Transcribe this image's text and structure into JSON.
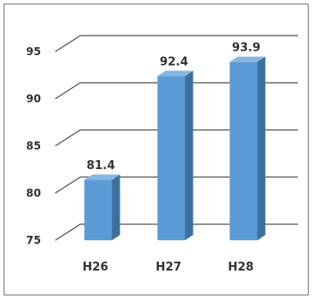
{
  "chart_data": {
    "type": "bar",
    "categories": [
      "H26",
      "H27",
      "H28"
    ],
    "category_labels": [
      "H26",
      "H27",
      "H28"
    ],
    "values": [
      81.4,
      92.4,
      93.9
    ],
    "data_labels": [
      "81.4",
      "92.4",
      "93.9"
    ],
    "yticks": [
      75,
      80,
      85,
      90,
      95
    ],
    "ytick_labels": [
      "75",
      "80",
      "85",
      "90",
      "95"
    ],
    "ylim": [
      75,
      97
    ],
    "title": "",
    "xlabel": "",
    "ylabel": "",
    "grid": true,
    "legend": "none",
    "style": "3d-column",
    "colors": {
      "bar_front": "#5b9bd5",
      "bar_side": "#3d6f9e",
      "bar_top": "#86b7e3",
      "gridline": "#555555",
      "text": "#333333",
      "frame": "#7a7a7a"
    }
  }
}
